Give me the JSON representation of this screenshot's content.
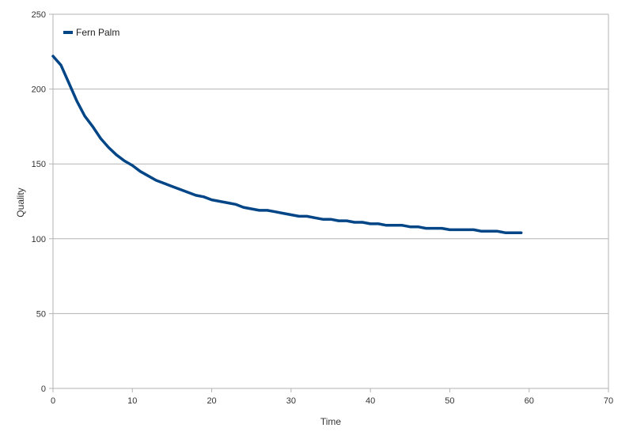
{
  "chart_data": {
    "type": "line",
    "title": "",
    "xlabel": "Time",
    "ylabel": "Quality",
    "xlim": [
      0,
      70
    ],
    "ylim": [
      0,
      250
    ],
    "xticks": [
      0,
      10,
      20,
      30,
      40,
      50,
      60,
      70
    ],
    "yticks": [
      0,
      50,
      100,
      150,
      200,
      250
    ],
    "grid": "horizontal",
    "legend_position": "top-left",
    "series": [
      {
        "name": "Fern Palm",
        "color": "#004586",
        "x": [
          0,
          1,
          2,
          3,
          4,
          5,
          6,
          7,
          8,
          9,
          10,
          11,
          12,
          13,
          14,
          15,
          16,
          17,
          18,
          19,
          20,
          21,
          22,
          23,
          24,
          25,
          26,
          27,
          28,
          29,
          30,
          31,
          32,
          33,
          34,
          35,
          36,
          37,
          38,
          39,
          40,
          41,
          42,
          43,
          44,
          45,
          46,
          47,
          48,
          49,
          50,
          51,
          52,
          53,
          54,
          55,
          56,
          57,
          58,
          59
        ],
        "y": [
          222,
          216,
          204,
          192,
          182,
          175,
          167,
          161,
          156,
          152,
          149,
          145,
          142,
          139,
          137,
          135,
          133,
          131,
          129,
          128,
          126,
          125,
          124,
          123,
          121,
          120,
          119,
          119,
          118,
          117,
          116,
          115,
          115,
          114,
          113,
          113,
          112,
          112,
          111,
          111,
          110,
          110,
          109,
          109,
          109,
          108,
          108,
          107,
          107,
          107,
          106,
          106,
          106,
          106,
          105,
          105,
          105,
          104,
          104,
          104
        ]
      }
    ]
  }
}
